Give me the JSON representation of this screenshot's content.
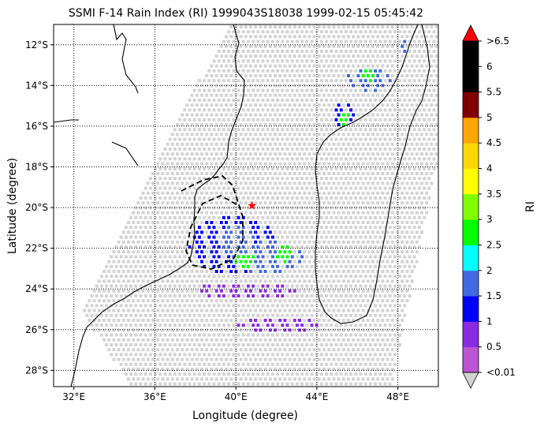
{
  "title": "SSMI F-14 Rain Index (RI) 1999043S18038 1999-02-15 05:45:42",
  "xlabel": "Longitude (degree)",
  "ylabel": "Latitude (degree)",
  "colorbar": {
    "label": "RI",
    "tick_labels": [
      "<0.01",
      "0.5",
      "1",
      "1.5",
      "2",
      "2.5",
      "3",
      "3.5",
      "4",
      "4.5",
      "5",
      "5.5",
      "6",
      ">6.5"
    ],
    "colors": [
      "#ba55d3",
      "#8a2be2",
      "#0000ff",
      "#4169e1",
      "#00ffff",
      "#00ff00",
      "#7fff00",
      "#ffff00",
      "#ffd700",
      "#ffa500",
      "#800000",
      "#000000",
      "#000000"
    ],
    "under_color": "#d3d3d3",
    "over_color": "#ff0000"
  },
  "map": {
    "lon_range": [
      31,
      50
    ],
    "lat_range": [
      -28.8,
      -11
    ],
    "xticks": [
      {
        "v": 32,
        "label": "32°E"
      },
      {
        "v": 36,
        "label": "36°E"
      },
      {
        "v": 40,
        "label": "40°E"
      },
      {
        "v": 44,
        "label": "44°E"
      },
      {
        "v": 48,
        "label": "48°E"
      }
    ],
    "yticks": [
      {
        "v": -12,
        "label": "12°S"
      },
      {
        "v": -14,
        "label": "14°S"
      },
      {
        "v": -16,
        "label": "16°S"
      },
      {
        "v": -18,
        "label": "18°S"
      },
      {
        "v": -20,
        "label": "20°S"
      },
      {
        "v": -22,
        "label": "22°S"
      },
      {
        "v": -24,
        "label": "24°S"
      },
      {
        "v": -26,
        "label": "26°S"
      },
      {
        "v": -28,
        "label": "28°S"
      }
    ],
    "gridlines": "dotted",
    "storm_center": {
      "lon": 40.8,
      "lat": -19.9
    },
    "swath_corners": [
      [
        39.5,
        -11
      ],
      [
        50,
        -11
      ],
      [
        50,
        -17
      ],
      [
        47.6,
        -28.8
      ],
      [
        34.8,
        -28.8
      ],
      [
        32.3,
        -25
      ]
    ],
    "rain_areas": [
      {
        "lon": 39.8,
        "lat": -21.8,
        "rlon": 2.2,
        "rlat": 1.5,
        "value": 1.0
      },
      {
        "lon": 40.0,
        "lat": -21.5,
        "rlon": 0.9,
        "rlat": 0.8,
        "value": 1.5
      },
      {
        "lon": 40.4,
        "lat": -22.5,
        "rlon": 0.5,
        "rlat": 0.4,
        "value": 2.5
      },
      {
        "lon": 41.5,
        "lat": -22.4,
        "rlon": 1.8,
        "rlat": 0.8,
        "value": 1.5
      },
      {
        "lon": 42.3,
        "lat": -22.2,
        "rlon": 0.4,
        "rlat": 0.4,
        "value": 2.5
      },
      {
        "lon": 40.4,
        "lat": -24.0,
        "rlon": 2.6,
        "rlat": 0.4,
        "value": 0.5
      },
      {
        "lon": 42.0,
        "lat": -25.7,
        "rlon": 2.0,
        "rlat": 0.4,
        "value": 0.5
      },
      {
        "lon": 46.5,
        "lat": -13.6,
        "rlon": 1.1,
        "rlat": 0.6,
        "value": 1.5
      },
      {
        "lon": 46.5,
        "lat": -13.4,
        "rlon": 0.4,
        "rlat": 0.3,
        "value": 2.5
      },
      {
        "lon": 45.2,
        "lat": -15.3,
        "rlon": 0.6,
        "rlat": 0.6,
        "value": 1.0
      },
      {
        "lon": 45.3,
        "lat": -15.6,
        "rlon": 0.3,
        "rlat": 0.3,
        "value": 2.5
      },
      {
        "lon": 48.3,
        "lat": -12.0,
        "rlon": 0.3,
        "rlat": 0.3,
        "value": 1.5
      }
    ]
  }
}
